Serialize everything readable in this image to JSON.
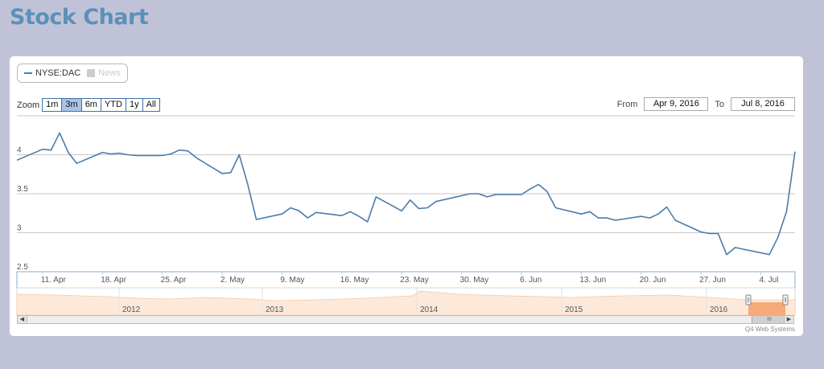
{
  "page": {
    "title": "Stock Chart"
  },
  "legend": {
    "items": [
      {
        "label": "NYSE:DAC",
        "active": true,
        "color": "#4a7cab"
      },
      {
        "label": "News",
        "active": false,
        "color": "#cccccc"
      }
    ]
  },
  "zoom": {
    "label": "Zoom",
    "buttons": [
      "1m",
      "3m",
      "6m",
      "YTD",
      "1y",
      "All"
    ],
    "active": "3m"
  },
  "range": {
    "from_label": "From",
    "from_value": "Apr 9, 2016",
    "to_label": "To",
    "to_value": "Jul 8, 2016"
  },
  "navigator": {
    "years": [
      "2012",
      "2013",
      "2014",
      "2015",
      "2016"
    ],
    "fill_color": "#fde9d9",
    "selected_color": "#f4a36c",
    "scroll_thumb": "III"
  },
  "credits": "Q4 Web Systems",
  "chart_data": {
    "type": "line",
    "title": "",
    "series": [
      {
        "name": "NYSE:DAC",
        "color": "#4a7cab",
        "x": [
          "2016-04-08",
          "2016-04-11",
          "2016-04-12",
          "2016-04-13",
          "2016-04-14",
          "2016-04-15",
          "2016-04-18",
          "2016-04-19",
          "2016-04-20",
          "2016-04-21",
          "2016-04-22",
          "2016-04-25",
          "2016-04-26",
          "2016-04-27",
          "2016-04-28",
          "2016-04-29",
          "2016-05-02",
          "2016-05-03",
          "2016-05-04",
          "2016-05-05",
          "2016-05-06",
          "2016-05-09",
          "2016-05-10",
          "2016-05-11",
          "2016-05-12",
          "2016-05-13",
          "2016-05-16",
          "2016-05-17",
          "2016-05-18",
          "2016-05-19",
          "2016-05-20",
          "2016-05-23",
          "2016-05-24",
          "2016-05-25",
          "2016-05-26",
          "2016-05-27",
          "2016-05-31",
          "2016-06-01",
          "2016-06-02",
          "2016-06-03",
          "2016-06-06",
          "2016-06-07",
          "2016-06-08",
          "2016-06-09",
          "2016-06-10",
          "2016-06-13",
          "2016-06-14",
          "2016-06-15",
          "2016-06-16",
          "2016-06-17",
          "2016-06-20",
          "2016-06-21",
          "2016-06-22",
          "2016-06-23",
          "2016-06-24",
          "2016-06-27",
          "2016-06-28",
          "2016-06-29",
          "2016-06-30",
          "2016-07-01",
          "2016-07-05",
          "2016-07-06",
          "2016-07-07",
          "2016-07-08"
        ],
        "values": [
          3.93,
          4.07,
          4.06,
          4.28,
          4.03,
          3.89,
          4.03,
          4.01,
          4.02,
          4.0,
          3.99,
          3.99,
          4.01,
          4.06,
          4.05,
          3.96,
          3.76,
          3.77,
          4.0,
          3.62,
          3.17,
          3.24,
          3.32,
          3.28,
          3.19,
          3.26,
          3.22,
          3.27,
          3.21,
          3.14,
          3.46,
          3.28,
          3.42,
          3.31,
          3.32,
          3.4,
          3.5,
          3.5,
          3.46,
          3.49,
          3.49,
          3.56,
          3.62,
          3.53,
          3.32,
          3.24,
          3.27,
          3.19,
          3.19,
          3.16,
          3.21,
          3.19,
          3.24,
          3.33,
          3.16,
          3.01,
          2.99,
          2.99,
          2.72,
          2.81,
          2.72,
          2.94,
          3.27,
          4.04
        ]
      }
    ],
    "ylim": [
      2.5,
      4.5
    ],
    "yticks": [
      "2.5",
      "3",
      "3.5",
      "4"
    ],
    "xticks": [
      "11. Apr",
      "18. Apr",
      "25. Apr",
      "2. May",
      "9. May",
      "16. May",
      "23. May",
      "30. May",
      "6. Jun",
      "13. Jun",
      "20. Jun",
      "27. Jun",
      "4. Jul"
    ],
    "grid": true,
    "legend_position": "top-left"
  }
}
